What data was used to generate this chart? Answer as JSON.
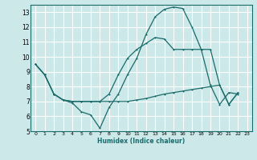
{
  "xlabel": "Humidex (Indice chaleur)",
  "background_color": "#cce8e8",
  "grid_color": "#ffffff",
  "line_color": "#1a6b6b",
  "xlim": [
    -0.5,
    23.5
  ],
  "ylim": [
    5,
    13.5
  ],
  "xticks": [
    0,
    1,
    2,
    3,
    4,
    5,
    6,
    7,
    8,
    9,
    10,
    11,
    12,
    13,
    14,
    15,
    16,
    17,
    18,
    19,
    20,
    21,
    22,
    23
  ],
  "yticks": [
    5,
    6,
    7,
    8,
    9,
    10,
    11,
    12,
    13
  ],
  "line1_x": [
    0,
    1,
    2,
    3,
    4,
    5,
    6,
    7,
    8,
    9,
    10,
    11,
    12,
    13,
    14,
    15,
    16,
    17,
    18,
    19,
    20,
    21,
    22
  ],
  "line1_y": [
    9.5,
    8.8,
    7.5,
    7.1,
    6.9,
    6.3,
    6.1,
    5.2,
    6.6,
    7.5,
    8.8,
    9.9,
    11.5,
    12.7,
    13.2,
    13.35,
    13.25,
    12.0,
    10.5,
    8.1,
    6.8,
    7.6,
    7.5
  ],
  "line2_x": [
    0,
    1,
    2,
    3,
    4,
    5,
    6,
    7,
    8,
    9,
    10,
    11,
    12,
    13,
    14,
    15,
    16,
    17,
    18,
    19,
    20,
    21,
    22
  ],
  "line2_y": [
    9.5,
    8.8,
    7.5,
    7.1,
    7.0,
    7.0,
    7.0,
    7.0,
    7.0,
    7.0,
    7.0,
    7.1,
    7.2,
    7.35,
    7.5,
    7.6,
    7.7,
    7.8,
    7.9,
    8.0,
    8.1,
    6.8,
    7.6
  ],
  "line3_x": [
    0,
    1,
    2,
    3,
    4,
    5,
    6,
    7,
    8,
    9,
    10,
    11,
    12,
    13,
    14,
    15,
    16,
    17,
    18,
    19,
    20,
    21,
    22
  ],
  "line3_y": [
    9.5,
    8.8,
    7.5,
    7.1,
    7.0,
    7.0,
    7.0,
    7.0,
    7.5,
    8.8,
    9.9,
    10.5,
    10.9,
    11.3,
    11.2,
    10.5,
    10.5,
    10.5,
    10.5,
    10.5,
    8.1,
    6.8,
    7.6
  ]
}
